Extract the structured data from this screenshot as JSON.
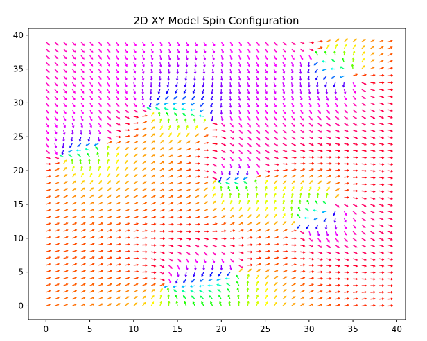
{
  "chart_data": {
    "type": "quiver",
    "title": "2D XY Model Spin Configuration",
    "xlabel": "",
    "ylabel": "",
    "xlim": [
      -2,
      41
    ],
    "ylim": [
      -2,
      41
    ],
    "x_ticks": [
      0,
      5,
      10,
      15,
      20,
      25,
      30,
      35,
      40
    ],
    "y_ticks": [
      0,
      5,
      10,
      15,
      20,
      25,
      30,
      35,
      40
    ],
    "grid": false,
    "lattice": {
      "nx": 40,
      "ny": 40,
      "x_start": 0,
      "y_start": 0,
      "step": 1
    },
    "colormap": "hsv",
    "color_encodes": "spin angle",
    "colormap_stops": [
      "#ff0000",
      "#ffff00",
      "#00ff00",
      "#00ffff",
      "#0000ff",
      "#ff00ff",
      "#ff0000"
    ],
    "defects": [
      {
        "x": 12,
        "y": 29,
        "charge": 1
      },
      {
        "x": 18.5,
        "y": 27.5,
        "charge": -1
      },
      {
        "x": 19.5,
        "y": 18.5,
        "charge": 1
      },
      {
        "x": 24,
        "y": 19,
        "charge": -1
      },
      {
        "x": 2,
        "y": 22,
        "charge": 1
      },
      {
        "x": 6.5,
        "y": 24,
        "charge": -1
      },
      {
        "x": 33,
        "y": 15,
        "charge": 1
      },
      {
        "x": 29,
        "y": 12,
        "charge": -1
      },
      {
        "x": 35,
        "y": 34,
        "charge": 1
      },
      {
        "x": 31,
        "y": 37,
        "charge": -1
      },
      {
        "x": 14,
        "y": 3,
        "charge": 1
      },
      {
        "x": 22,
        "y": 5,
        "charge": -1
      }
    ],
    "base_angle_deg": 0
  }
}
